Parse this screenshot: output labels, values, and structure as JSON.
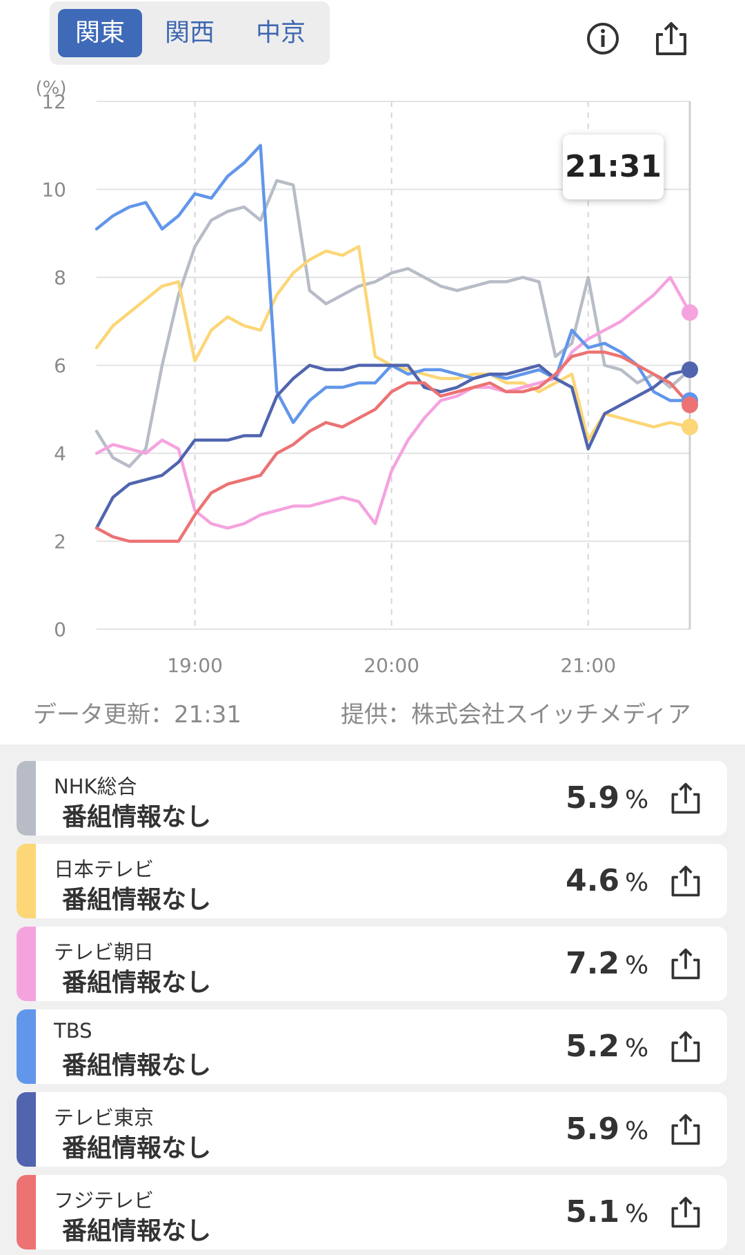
{
  "region_tabs": [
    {
      "label": "関東",
      "active": true
    },
    {
      "label": "関西",
      "active": false
    },
    {
      "label": "中京",
      "active": false
    }
  ],
  "icons": {
    "info": "info-icon",
    "share": "share-icon"
  },
  "tooltip_time": "21:31",
  "chart_data": {
    "type": "line",
    "ylabel": "(%)",
    "ylim": [
      0,
      12
    ],
    "yticks": [
      "0",
      "2",
      "4",
      "6",
      "8",
      "10",
      "12"
    ],
    "xticks": [
      "19:00",
      "20:00",
      "21:00"
    ],
    "xlim": [
      "18:30",
      "21:31"
    ],
    "grid": true,
    "series": [
      {
        "name": "NHK総合",
        "color": "#b7bcc6",
        "x": [
          "18:30",
          "18:35",
          "18:40",
          "18:45",
          "18:50",
          "18:55",
          "19:00",
          "19:05",
          "19:10",
          "19:15",
          "19:20",
          "19:25",
          "19:30",
          "19:35",
          "19:40",
          "19:45",
          "19:50",
          "19:55",
          "20:00",
          "20:05",
          "20:10",
          "20:15",
          "20:20",
          "20:25",
          "20:30",
          "20:35",
          "20:40",
          "20:45",
          "20:50",
          "20:55",
          "21:00",
          "21:05",
          "21:10",
          "21:15",
          "21:20",
          "21:25",
          "21:31"
        ],
        "values": [
          4.5,
          3.9,
          3.7,
          4.1,
          6.0,
          7.6,
          8.7,
          9.3,
          9.5,
          9.6,
          9.3,
          10.2,
          10.1,
          7.7,
          7.4,
          7.6,
          7.8,
          7.9,
          8.1,
          8.2,
          8.0,
          7.8,
          7.7,
          7.8,
          7.9,
          7.9,
          8.0,
          7.9,
          6.2,
          6.5,
          8.0,
          6.0,
          5.9,
          5.6,
          5.8,
          5.5,
          5.9
        ]
      },
      {
        "name": "日本テレビ",
        "color": "#fcd677",
        "x": [
          "18:30",
          "18:35",
          "18:40",
          "18:45",
          "18:50",
          "18:55",
          "19:00",
          "19:05",
          "19:10",
          "19:15",
          "19:20",
          "19:25",
          "19:30",
          "19:35",
          "19:40",
          "19:45",
          "19:50",
          "19:55",
          "20:00",
          "20:05",
          "20:10",
          "20:15",
          "20:20",
          "20:25",
          "20:30",
          "20:35",
          "20:40",
          "20:45",
          "20:50",
          "20:55",
          "21:00",
          "21:05",
          "21:10",
          "21:15",
          "21:20",
          "21:25",
          "21:31"
        ],
        "values": [
          6.4,
          6.9,
          7.2,
          7.5,
          7.8,
          7.9,
          6.1,
          6.8,
          7.1,
          6.9,
          6.8,
          7.6,
          8.1,
          8.4,
          8.6,
          8.5,
          8.7,
          6.2,
          6.0,
          5.9,
          5.8,
          5.7,
          5.7,
          5.8,
          5.8,
          5.6,
          5.6,
          5.4,
          5.6,
          5.8,
          4.3,
          4.9,
          4.8,
          4.7,
          4.6,
          4.7,
          4.6
        ]
      },
      {
        "name": "テレビ朝日",
        "color": "#f5a3df",
        "x": [
          "18:30",
          "18:35",
          "18:40",
          "18:45",
          "18:50",
          "18:55",
          "19:00",
          "19:05",
          "19:10",
          "19:15",
          "19:20",
          "19:25",
          "19:30",
          "19:35",
          "19:40",
          "19:45",
          "19:50",
          "19:55",
          "20:00",
          "20:05",
          "20:10",
          "20:15",
          "20:20",
          "20:25",
          "20:30",
          "20:35",
          "20:40",
          "20:45",
          "20:50",
          "20:55",
          "21:00",
          "21:05",
          "21:10",
          "21:15",
          "21:20",
          "21:25",
          "21:31"
        ],
        "values": [
          4.0,
          4.2,
          4.1,
          4.0,
          4.3,
          4.1,
          2.7,
          2.4,
          2.3,
          2.4,
          2.6,
          2.7,
          2.8,
          2.8,
          2.9,
          3.0,
          2.9,
          2.4,
          3.6,
          4.3,
          4.8,
          5.2,
          5.3,
          5.5,
          5.5,
          5.4,
          5.5,
          5.6,
          5.7,
          6.3,
          6.6,
          6.8,
          7.0,
          7.3,
          7.6,
          8.0,
          7.2
        ]
      },
      {
        "name": "TBS",
        "color": "#6196ea",
        "x": [
          "18:30",
          "18:35",
          "18:40",
          "18:45",
          "18:50",
          "18:55",
          "19:00",
          "19:05",
          "19:10",
          "19:15",
          "19:20",
          "19:25",
          "19:30",
          "19:35",
          "19:40",
          "19:45",
          "19:50",
          "19:55",
          "20:00",
          "20:05",
          "20:10",
          "20:15",
          "20:20",
          "20:25",
          "20:30",
          "20:35",
          "20:40",
          "20:45",
          "20:50",
          "20:55",
          "21:00",
          "21:05",
          "21:10",
          "21:15",
          "21:20",
          "21:25",
          "21:31"
        ],
        "values": [
          9.1,
          9.4,
          9.6,
          9.7,
          9.1,
          9.4,
          9.9,
          9.8,
          10.3,
          10.6,
          11.0,
          5.4,
          4.7,
          5.2,
          5.5,
          5.5,
          5.6,
          5.6,
          6.0,
          5.8,
          5.9,
          5.9,
          5.8,
          5.7,
          5.8,
          5.7,
          5.8,
          5.9,
          5.7,
          6.8,
          6.4,
          6.5,
          6.3,
          6.0,
          5.4,
          5.2,
          5.2
        ]
      },
      {
        "name": "テレビ東京",
        "color": "#5065ae",
        "x": [
          "18:30",
          "18:35",
          "18:40",
          "18:45",
          "18:50",
          "18:55",
          "19:00",
          "19:05",
          "19:10",
          "19:15",
          "19:20",
          "19:25",
          "19:30",
          "19:35",
          "19:40",
          "19:45",
          "19:50",
          "19:55",
          "20:00",
          "20:05",
          "20:10",
          "20:15",
          "20:20",
          "20:25",
          "20:30",
          "20:35",
          "20:40",
          "20:45",
          "20:50",
          "20:55",
          "21:00",
          "21:05",
          "21:10",
          "21:15",
          "21:20",
          "21:25",
          "21:31"
        ],
        "values": [
          2.3,
          3.0,
          3.3,
          3.4,
          3.5,
          3.8,
          4.3,
          4.3,
          4.3,
          4.4,
          4.4,
          5.3,
          5.7,
          6.0,
          5.9,
          5.9,
          6.0,
          6.0,
          6.0,
          6.0,
          5.5,
          5.4,
          5.5,
          5.7,
          5.8,
          5.8,
          5.9,
          6.0,
          5.7,
          5.5,
          4.1,
          4.9,
          5.1,
          5.3,
          5.5,
          5.8,
          5.9
        ]
      },
      {
        "name": "フジテレビ",
        "color": "#ec7273",
        "x": [
          "18:30",
          "18:35",
          "18:40",
          "18:45",
          "18:50",
          "18:55",
          "19:00",
          "19:05",
          "19:10",
          "19:15",
          "19:20",
          "19:25",
          "19:30",
          "19:35",
          "19:40",
          "19:45",
          "19:50",
          "19:55",
          "20:00",
          "20:05",
          "20:10",
          "20:15",
          "20:20",
          "20:25",
          "20:30",
          "20:35",
          "20:40",
          "20:45",
          "20:50",
          "20:55",
          "21:00",
          "21:05",
          "21:10",
          "21:15",
          "21:20",
          "21:25",
          "21:31"
        ],
        "values": [
          2.3,
          2.1,
          2.0,
          2.0,
          2.0,
          2.0,
          2.6,
          3.1,
          3.3,
          3.4,
          3.5,
          4.0,
          4.2,
          4.5,
          4.7,
          4.6,
          4.8,
          5.0,
          5.4,
          5.6,
          5.6,
          5.3,
          5.4,
          5.5,
          5.6,
          5.4,
          5.4,
          5.5,
          5.8,
          6.2,
          6.3,
          6.3,
          6.2,
          6.0,
          5.8,
          5.6,
          5.1
        ]
      }
    ]
  },
  "meta": {
    "updated": "データ更新：21:31",
    "provider": "提供：株式会社スイッチメディア"
  },
  "channels": [
    {
      "name": "NHK総合",
      "program": "番組情報なし",
      "value": "5.9",
      "unit": "%",
      "color": "#b7bcc6"
    },
    {
      "name": "日本テレビ",
      "program": "番組情報なし",
      "value": "4.6",
      "unit": "%",
      "color": "#fcd677"
    },
    {
      "name": "テレビ朝日",
      "program": "番組情報なし",
      "value": "7.2",
      "unit": "%",
      "color": "#f5a3df"
    },
    {
      "name": "TBS",
      "program": "番組情報なし",
      "value": "5.2",
      "unit": "%",
      "color": "#6196ea"
    },
    {
      "name": "テレビ東京",
      "program": "番組情報なし",
      "value": "5.9",
      "unit": "%",
      "color": "#5065ae"
    },
    {
      "name": "フジテレビ",
      "program": "番組情報なし",
      "value": "5.1",
      "unit": "%",
      "color": "#ec7273"
    }
  ]
}
